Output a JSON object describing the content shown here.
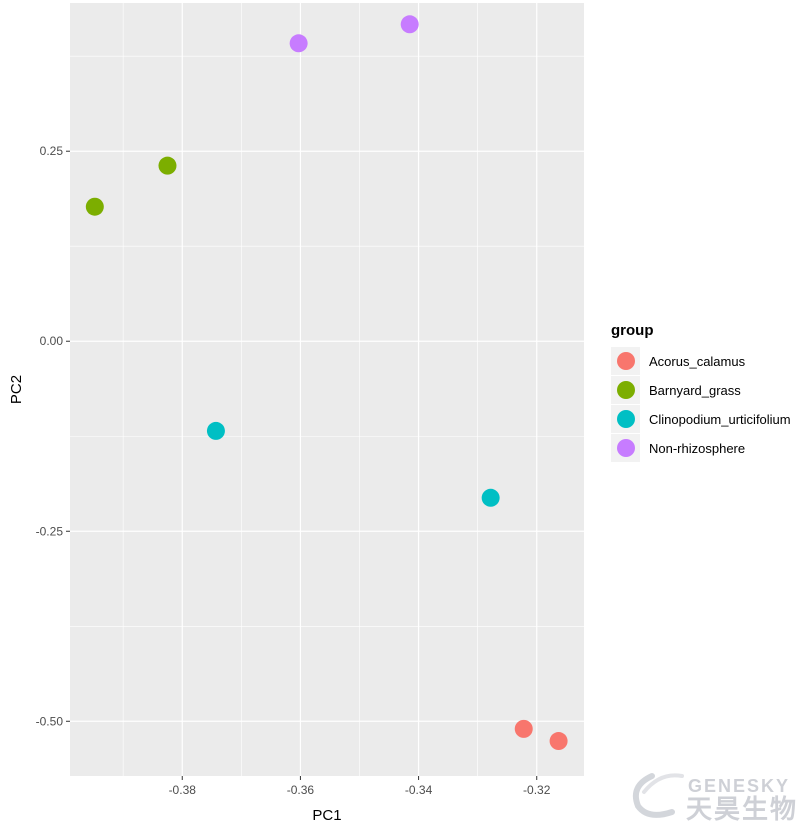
{
  "chart_data": {
    "type": "scatter",
    "title": "",
    "xlabel": "PC1",
    "ylabel": "PC2",
    "xlim": [
      -0.399,
      -0.312
    ],
    "ylim": [
      -0.572,
      0.445
    ],
    "x_ticks": [
      -0.38,
      -0.36,
      -0.34,
      -0.32
    ],
    "x_tick_labels": [
      "-0.38",
      "-0.36",
      "-0.34",
      "-0.32"
    ],
    "y_ticks": [
      -0.5,
      -0.25,
      0.0,
      0.25
    ],
    "y_tick_labels": [
      "-0.50",
      "-0.25",
      "0.00",
      "0.25"
    ],
    "grid": true,
    "panel_background": "#ebebeb",
    "grid_color": "#ffffff",
    "legend": {
      "title": "group",
      "position": "right"
    },
    "series": [
      {
        "name": "Acorus_calamus",
        "color": "#f8766d",
        "points": [
          {
            "x": -0.3222,
            "y": -0.51
          },
          {
            "x": -0.3163,
            "y": -0.526
          }
        ]
      },
      {
        "name": "Barnyard_grass",
        "color": "#7cae00",
        "points": [
          {
            "x": -0.3948,
            "y": 0.177
          },
          {
            "x": -0.3825,
            "y": 0.231
          }
        ]
      },
      {
        "name": "Clinopodium_urticifolium",
        "color": "#00bfc4",
        "points": [
          {
            "x": -0.3743,
            "y": -0.118
          },
          {
            "x": -0.3278,
            "y": -0.206
          }
        ]
      },
      {
        "name": "Non-rhizosphere",
        "color": "#c77cff",
        "points": [
          {
            "x": -0.3603,
            "y": 0.392
          },
          {
            "x": -0.3415,
            "y": 0.417
          }
        ]
      }
    ]
  },
  "watermark": {
    "text_en": "GENESKY",
    "text_zh": "天昊生物",
    "color": "#c9ccd2"
  }
}
